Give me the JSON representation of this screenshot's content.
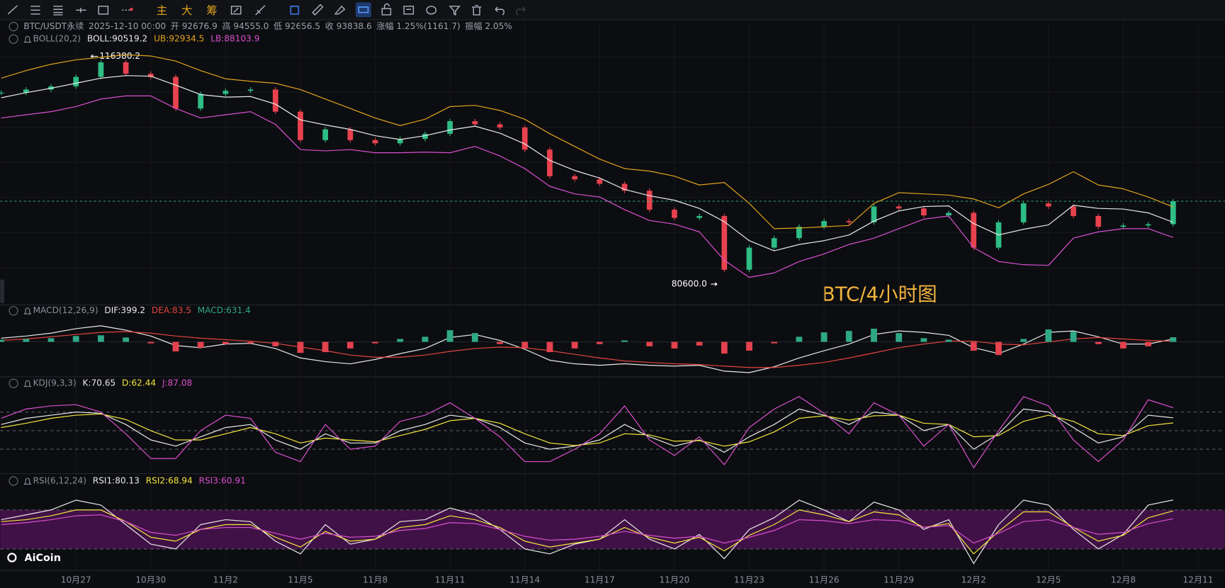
{
  "toolbar": {
    "buttons": [
      "主",
      "大",
      "筹"
    ]
  },
  "header": {
    "symbol": "BTC/USDT永续",
    "time": "2025-12-10 00:00",
    "fields": [
      "开 92676.9",
      "高 94555.0",
      "低 92656.5",
      "收 93838.6",
      "涨幅 1.25%(1161.7)",
      "振幅 2.05%"
    ]
  },
  "watermark": "AiCoin",
  "chart_data": [
    {
      "type": "candlestick",
      "title": "BTC/4小时图",
      "legend": "BOLL(20,2)",
      "categories": [
        null,
        null,
        null,
        "10月27",
        null,
        null,
        "10月30",
        null,
        null,
        "11月2",
        null,
        null,
        "11月5",
        null,
        null,
        "11月8",
        null,
        null,
        "11月11",
        null,
        null,
        "11月14",
        null,
        null,
        "11月17",
        null,
        null,
        "11月20",
        null,
        null,
        "11月23",
        null,
        null,
        "11月26",
        null,
        null,
        "11月29",
        null,
        null,
        "12月2",
        null,
        null,
        "12月5",
        null,
        null,
        "12月8",
        null,
        null,
        "12月11"
      ],
      "values": [
        111000,
        111500,
        112000,
        113500,
        115800,
        114000,
        113500,
        108500,
        110800,
        111300,
        111500,
        108000,
        103500,
        105200,
        103500,
        103000,
        103700,
        104500,
        106500,
        106000,
        105500,
        102000,
        97800,
        97300,
        96600,
        95500,
        92500,
        91200,
        91500,
        83000,
        86500,
        88000,
        89800,
        90700,
        90500,
        93000,
        92700,
        91600,
        92000,
        86500,
        90500,
        93500,
        93000,
        91500,
        89800,
        90000,
        90200,
        93838.6,
        null
      ],
      "up_color": "#2ebd85",
      "down_color": "#e8424e",
      "series": [
        {
          "label": "BOLL:90519.2",
          "color": "#e8e8e8",
          "values": [
            110200,
            111000,
            111700,
            112500,
            113300,
            113700,
            113600,
            112200,
            110700,
            110300,
            110400,
            109200,
            106700,
            105900,
            105200,
            104200,
            103600,
            104200,
            105100,
            105700,
            104600,
            102900,
            100300,
            98700,
            97500,
            95700,
            94700,
            94000,
            92700,
            90600,
            87600,
            86000,
            87000,
            87600,
            88500,
            90700,
            92300,
            93000,
            93100,
            90300,
            88500,
            89400,
            90100,
            93200,
            92700,
            92600,
            92000,
            90519.2,
            null
          ]
        },
        {
          "label": "UB:92934.5",
          "color": "#e0a21d",
          "values": [
            113300,
            114500,
            115500,
            116200,
            116600,
            117000,
            116800,
            116000,
            114500,
            113200,
            112800,
            112500,
            111500,
            110000,
            108500,
            107000,
            105800,
            106800,
            108800,
            109000,
            108200,
            106800,
            104500,
            102500,
            100500,
            99000,
            98600,
            97800,
            96400,
            96800,
            93500,
            89500,
            89600,
            89800,
            90000,
            93500,
            95200,
            95000,
            94800,
            94200,
            92800,
            95000,
            96500,
            98500,
            96400,
            95800,
            94500,
            92934.5,
            null
          ]
        },
        {
          "label": "LB:88103.9",
          "color": "#d94fd0",
          "values": [
            107000,
            107500,
            108000,
            108800,
            110000,
            110500,
            110500,
            108500,
            107000,
            107500,
            108000,
            106000,
            102000,
            101800,
            102000,
            101500,
            101500,
            101600,
            101500,
            102500,
            101000,
            99000,
            96200,
            95000,
            94500,
            92500,
            90800,
            90200,
            89000,
            84500,
            81800,
            82500,
            84300,
            85500,
            87000,
            88000,
            89500,
            91000,
            91500,
            86500,
            84300,
            83800,
            83700,
            88000,
            89000,
            89500,
            89500,
            88103.9,
            null
          ]
        }
      ],
      "annotations": [
        {
          "value": 116380.2,
          "label": "116380.2"
        },
        {
          "value": 80600.0,
          "label": "80600.0"
        }
      ],
      "ylim": [
        77500,
        122200
      ]
    },
    {
      "type": "macd",
      "legend": "MACD(12,26,9)",
      "series": [
        {
          "label": "DIF:399.2",
          "color": "#e8e8e8",
          "values": [
            500,
            800,
            1200,
            1800,
            2200,
            1600,
            800,
            -500,
            -800,
            -300,
            -200,
            -900,
            -2200,
            -2700,
            -3000,
            -2400,
            -1600,
            -900,
            600,
            1000,
            200,
            -1000,
            -2500,
            -3000,
            -3200,
            -3000,
            -3200,
            -3300,
            -3200,
            -4000,
            -4200,
            -3400,
            -2200,
            -1200,
            -300,
            1000,
            1500,
            1300,
            900,
            -800,
            -1600,
            -300,
            1300,
            1500,
            700,
            -300,
            -300,
            399.2,
            null
          ]
        },
        {
          "label": "DEA:83.5",
          "color": "#e0453f",
          "values": [
            200,
            400,
            700,
            1000,
            1300,
            1400,
            1200,
            800,
            500,
            300,
            100,
            -200,
            -700,
            -1200,
            -1800,
            -2100,
            -2100,
            -1800,
            -1300,
            -900,
            -700,
            -800,
            -1200,
            -1700,
            -2200,
            -2600,
            -2800,
            -3000,
            -3100,
            -3300,
            -3500,
            -3500,
            -3200,
            -2800,
            -2200,
            -1500,
            -800,
            -300,
            100,
            100,
            -300,
            -400,
            0,
            400,
            600,
            400,
            200,
            83.5,
            null
          ]
        },
        {
          "label": "MACD:631.4",
          "type": "bar",
          "color": "#2fa886",
          "negative_color": "#e3424e",
          "values": [
            300,
            400,
            500,
            800,
            900,
            600,
            -200,
            -1300,
            -800,
            -300,
            -200,
            -600,
            -1500,
            -1400,
            -900,
            -200,
            400,
            700,
            1600,
            1200,
            -300,
            -900,
            -1400,
            -900,
            -300,
            200,
            -600,
            -900,
            -500,
            -1600,
            -1200,
            -200,
            700,
            1300,
            1500,
            1800,
            1200,
            500,
            300,
            -1200,
            -1800,
            400,
            1700,
            1400,
            -300,
            -900,
            -600,
            631.4,
            null
          ]
        }
      ],
      "ylim": [
        -4500,
        3500
      ]
    },
    {
      "type": "kdj",
      "legend": "KDJ(9,3,3)",
      "series": [
        {
          "label": "K:70.65",
          "color": "#e8e8e8",
          "values": [
            60,
            70,
            75,
            80,
            78,
            60,
            35,
            25,
            40,
            55,
            60,
            35,
            20,
            45,
            30,
            30,
            50,
            60,
            75,
            70,
            55,
            30,
            20,
            25,
            35,
            60,
            40,
            25,
            35,
            15,
            40,
            60,
            85,
            75,
            60,
            80,
            75,
            50,
            60,
            20,
            45,
            85,
            80,
            55,
            30,
            40,
            75,
            70.65,
            null
          ]
        },
        {
          "label": "D:62.44",
          "color": "#f3e53d",
          "values": [
            55,
            62,
            70,
            75,
            77,
            68,
            50,
            35,
            35,
            45,
            55,
            45,
            30,
            38,
            35,
            32,
            42,
            52,
            66,
            70,
            62,
            45,
            30,
            26,
            30,
            45,
            43,
            33,
            34,
            25,
            32,
            48,
            70,
            74,
            67,
            74,
            75,
            62,
            60,
            40,
            42,
            65,
            75,
            65,
            45,
            42,
            58,
            62.44,
            null
          ]
        },
        {
          "label": "J:87.08",
          "color": "#d94fd0",
          "values": [
            70,
            85,
            90,
            92,
            80,
            45,
            5,
            5,
            50,
            75,
            70,
            15,
            0,
            60,
            20,
            25,
            65,
            75,
            95,
            70,
            40,
            0,
            0,
            20,
            45,
            90,
            35,
            10,
            40,
            -5,
            55,
            85,
            105,
            78,
            45,
            95,
            75,
            25,
            60,
            -10,
            50,
            105,
            90,
            35,
            0,
            35,
            100,
            87.08,
            null
          ]
        }
      ],
      "levels": [
        20,
        50,
        80
      ],
      "ylim": [
        -15,
        115
      ]
    },
    {
      "type": "rsi",
      "legend": "RSI(6,12,24)",
      "series": [
        {
          "label": "RSI1:80.13",
          "color": "#e8e8e8",
          "values": [
            60,
            65,
            70,
            80,
            75,
            55,
            35,
            30,
            55,
            60,
            58,
            38,
            25,
            55,
            35,
            40,
            58,
            60,
            72,
            65,
            50,
            30,
            25,
            35,
            40,
            60,
            40,
            30,
            45,
            20,
            50,
            62,
            80,
            70,
            58,
            78,
            70,
            50,
            60,
            15,
            55,
            80,
            75,
            50,
            30,
            45,
            75,
            80.13,
            null
          ]
        },
        {
          "label": "RSI2:68.94",
          "color": "#f3e53d",
          "values": [
            58,
            60,
            64,
            70,
            70,
            58,
            42,
            38,
            50,
            55,
            55,
            42,
            32,
            48,
            38,
            40,
            52,
            55,
            64,
            60,
            52,
            38,
            32,
            36,
            40,
            52,
            42,
            36,
            42,
            28,
            44,
            55,
            70,
            65,
            58,
            68,
            65,
            52,
            56,
            25,
            48,
            68,
            68,
            52,
            38,
            44,
            62,
            68.94,
            null
          ]
        },
        {
          "label": "RSI3:60.91",
          "color": "#d94fd0",
          "values": [
            55,
            57,
            60,
            64,
            65,
            58,
            47,
            44,
            50,
            52,
            52,
            46,
            40,
            46,
            42,
            43,
            49,
            51,
            57,
            56,
            50,
            43,
            39,
            40,
            43,
            48,
            44,
            41,
            43,
            36,
            42,
            49,
            60,
            59,
            56,
            60,
            59,
            52,
            54,
            36,
            46,
            58,
            60,
            52,
            45,
            47,
            56,
            60.91,
            null
          ]
        }
      ],
      "levels": [
        30,
        70
      ],
      "band_color": "#4a1350",
      "ylim": [
        10,
        90
      ]
    }
  ]
}
